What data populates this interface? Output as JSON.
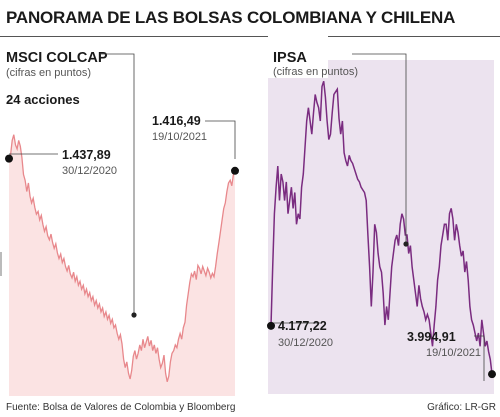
{
  "title": "PANORAMA DE LAS BOLSAS COLOMBIANA Y CHILENA",
  "footer": {
    "source": "Fuente: Bolsa de Valores de Colombia y Bloomberg",
    "credit": "Gráfico: LR-GR"
  },
  "chart_data": [
    {
      "type": "area",
      "title": "MSCI COLCAP",
      "subtitle": "(cifras en puntos)",
      "note": "24 acciones",
      "color": "#e8888c",
      "fill": "#fbe3e3",
      "start_label": {
        "value": "1.437,89",
        "date": "30/12/2020"
      },
      "end_label": {
        "value": "1.416,49",
        "date": "19/10/2021"
      },
      "start": {
        "date": "30/12/2020",
        "value": 1437.89
      },
      "end": {
        "date": "19/10/2021",
        "value": 1416.49
      },
      "values": [
        1437.89,
        1445,
        1470,
        1480,
        1462,
        1455,
        1470,
        1460,
        1440,
        1410,
        1400,
        1380,
        1395,
        1372,
        1360,
        1368,
        1352,
        1340,
        1345,
        1330,
        1338,
        1322,
        1310,
        1318,
        1302,
        1295,
        1305,
        1290,
        1280,
        1288,
        1272,
        1262,
        1270,
        1255,
        1262,
        1248,
        1240,
        1250,
        1235,
        1228,
        1238,
        1222,
        1230,
        1215,
        1222,
        1208,
        1215,
        1200,
        1208,
        1195,
        1202,
        1188,
        1195,
        1180,
        1188,
        1175,
        1182,
        1168,
        1175,
        1160,
        1168,
        1155,
        1162,
        1148,
        1155,
        1140,
        1145,
        1130,
        1120,
        1128,
        1112,
        1085,
        1070,
        1080,
        1060,
        1050,
        1065,
        1090,
        1100,
        1085,
        1095,
        1110,
        1100,
        1120,
        1105,
        1115,
        1125,
        1108,
        1118,
        1100,
        1110,
        1095,
        1105,
        1085,
        1070,
        1078,
        1092,
        1060,
        1045,
        1055,
        1080,
        1095,
        1100,
        1110,
        1105,
        1120,
        1130,
        1120,
        1140,
        1150,
        1180,
        1200,
        1220,
        1235,
        1230,
        1240,
        1225,
        1250,
        1245,
        1235,
        1248,
        1240,
        1232,
        1245,
        1238,
        1228,
        1236,
        1230,
        1248,
        1270,
        1290,
        1310,
        1330,
        1350,
        1360,
        1380,
        1395,
        1400,
        1390,
        1410,
        1416.49
      ],
      "ylim": [
        1020,
        1520
      ]
    },
    {
      "type": "area",
      "title": "IPSA",
      "subtitle": "(cifras en puntos)",
      "color": "#7a2c80",
      "fill": "#ece3ef",
      "start_label": {
        "value": "4.177,22",
        "date": "30/12/2020"
      },
      "end_label": {
        "value": "3.994,91",
        "date": "19/10/2021"
      },
      "start": {
        "date": "30/12/2020",
        "value": 4177.22
      },
      "end": {
        "date": "19/10/2021",
        "value": 3994.91
      },
      "values": [
        4177.22,
        4400,
        4600,
        4700,
        4780,
        4650,
        4750,
        4720,
        4650,
        4720,
        4600,
        4650,
        4700,
        4620,
        4680,
        4560,
        4600,
        4580,
        4700,
        4750,
        4850,
        4950,
        5000,
        4950,
        4900,
        4980,
        5050,
        5020,
        5000,
        4950,
        5080,
        5100,
        5040,
        4950,
        4880,
        4900,
        4980,
        5050,
        5060,
        5070,
        4960,
        4900,
        4950,
        4830,
        4800,
        4780,
        4820,
        4800,
        4790,
        4770,
        4750,
        4730,
        4720,
        4700,
        4690,
        4680,
        4650,
        4520,
        4400,
        4250,
        4380,
        4560,
        4530,
        4450,
        4400,
        4380,
        4300,
        4180,
        4250,
        4200,
        4300,
        4400,
        4450,
        4500,
        4520,
        4480,
        4560,
        4600,
        4580,
        4520,
        4520,
        4450,
        4480,
        4400,
        4350,
        4300,
        4250,
        4330,
        4280,
        4250,
        4230,
        4200,
        4220,
        4200,
        4150,
        4100,
        4180,
        4250,
        4350,
        4400,
        4480,
        4520,
        4560,
        4560,
        4500,
        4600,
        4620,
        4580,
        4500,
        4560,
        4530,
        4480,
        4440,
        4460,
        4380,
        4420,
        4350,
        4250,
        4200,
        4180,
        4150,
        4120,
        4150,
        4100,
        4200,
        4150,
        4100,
        4120,
        4080,
        4050,
        3994.91
      ],
      "ylim": [
        3920,
        5180
      ]
    }
  ]
}
